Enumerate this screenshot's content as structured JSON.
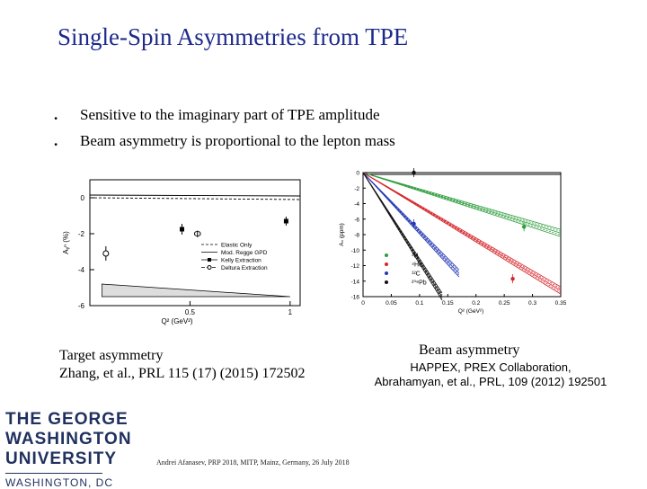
{
  "slide": {
    "title": "Single-Spin Asymmetries from TPE",
    "bullets": [
      {
        "marker": ".",
        "text": "Sensitive to the imaginary part of TPE amplitude"
      },
      {
        "marker": ".",
        "text": "Beam asymmetry is proportional to the lepton mass"
      }
    ],
    "left_caption": {
      "line1": "Target asymmetry",
      "line2": "Zhang, et al., PRL 115 (17) (2015) 172502"
    },
    "right_caption": {
      "title": "Beam asymmetry",
      "line1": "HAPPEX, PREX Collaboration,",
      "line2": "Abrahamyan, et al., PRL, 109 (2012) 192501"
    },
    "logo": {
      "line1": "THE GEORGE",
      "line2": "WASHINGTON",
      "line3": "UNIVERSITY",
      "line4": "WASHINGTON, DC"
    },
    "footer": "Andrei Afanasev, PRP 2018, MITP, Mainz, Germany, 26 July 2018"
  },
  "chart_data": [
    {
      "type": "line",
      "title": "",
      "xlabel": "Q² (GeV²)",
      "ylabel": "Aᵧⁿ (%)",
      "xlim": [
        0,
        1.05
      ],
      "ylim": [
        -6,
        1
      ],
      "xticks": [
        "0.5",
        "1"
      ],
      "yticks": [
        "0",
        "-2",
        "-4",
        "-6"
      ],
      "legend_position": "bottom-right",
      "legend": [
        "Elastic Only",
        "Mod. Regge GPD",
        "Kelly Extraction",
        "Deltura Extraction"
      ],
      "series": [
        {
          "name": "Elastic Only",
          "x": [
            0.0,
            1.05
          ],
          "y": [
            0.0,
            -0.1
          ]
        },
        {
          "name": "Mod. Regge GPD",
          "x": [
            0.0,
            1.05
          ],
          "y": [
            0.15,
            0.1
          ]
        },
        {
          "name": "Kelly Extraction",
          "x": [
            0.46,
            0.98
          ],
          "y": [
            -1.75,
            -1.3
          ],
          "err": [
            0.3,
            0.25
          ]
        },
        {
          "name": "Deltura Extraction",
          "x": [
            0.08
          ],
          "y": [
            -3.1
          ],
          "err": [
            0.4
          ]
        }
      ],
      "annotations": [
        {
          "text": "Φ",
          "x": 0.5,
          "y": -2.0
        }
      ],
      "systematic_band": {
        "x": [
          0.06,
          1.0
        ],
        "upper": [
          -4.8,
          -5.5
        ],
        "lower": [
          -5.5,
          -5.5
        ]
      }
    },
    {
      "type": "line",
      "title": "",
      "xlabel": "Q² (GeV²)",
      "ylabel": "Aₙ (ppm)",
      "xlim": [
        0,
        0.35
      ],
      "ylim": [
        -16,
        0
      ],
      "xticks": [
        "0",
        "0.05",
        "0.1",
        "0.15",
        "0.2",
        "0.25",
        "0.3",
        "0.35"
      ],
      "yticks": [
        "0",
        "-2",
        "-4",
        "-6",
        "-8",
        "-10",
        "-12",
        "-14",
        "-16"
      ],
      "legend_position": "left",
      "series": [
        {
          "name": "¹H",
          "color": "#2e9d3c",
          "x": [
            0.0,
            0.35
          ],
          "y": [
            0.0,
            -7.8
          ],
          "data_x": [
            0.285
          ],
          "data_y": [
            -7.0
          ]
        },
        {
          "name": "⁴He",
          "color": "#d6262b",
          "x": [
            0.0,
            0.35
          ],
          "y": [
            0.0,
            -15.2
          ],
          "data_x": [
            0.265
          ],
          "data_y": [
            -13.7
          ]
        },
        {
          "name": "¹²C",
          "color": "#2437b5",
          "x": [
            0.0,
            0.17
          ],
          "y": [
            0.0,
            -13.0
          ],
          "data_x": [
            0.09
          ],
          "data_y": [
            -6.6
          ]
        },
        {
          "name": "²⁰⁸Pb",
          "color": "#111111",
          "x": [
            0.0,
            0.14
          ],
          "y": [
            0.0,
            -16.0
          ],
          "data_x": [
            0.09
          ],
          "data_y": [
            0.0
          ]
        }
      ]
    }
  ]
}
